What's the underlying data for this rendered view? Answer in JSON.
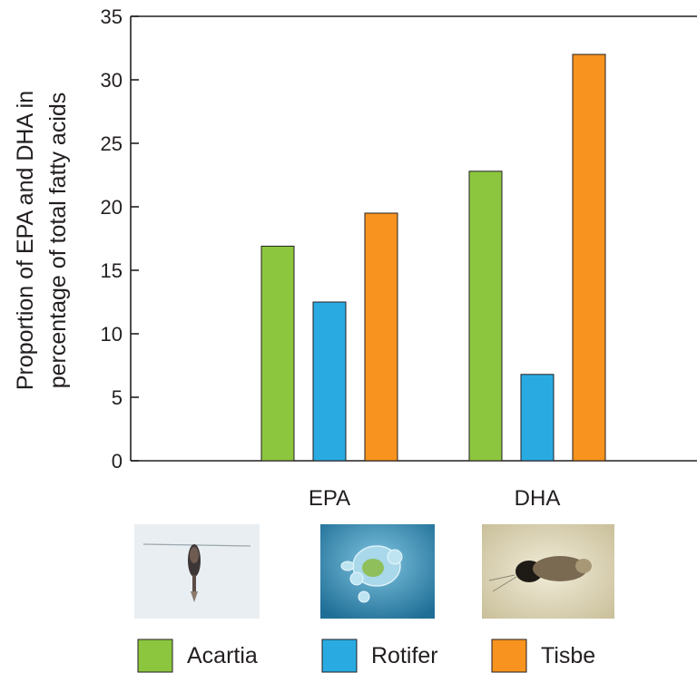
{
  "chart_data": {
    "type": "bar",
    "categories": [
      "EPA",
      "DHA"
    ],
    "series": [
      {
        "name": "Acartia",
        "values": [
          16.9,
          22.8
        ],
        "color": "#8cc63f"
      },
      {
        "name": "Rotifer",
        "values": [
          12.5,
          6.8
        ],
        "color": "#29abe2"
      },
      {
        "name": "Tisbe",
        "values": [
          19.5,
          32.0
        ],
        "color": "#f7931e"
      }
    ],
    "ylabel_lines": [
      "Proportion of EPA and DHA in",
      "percentage of total fatty acids"
    ],
    "ylim": [
      0,
      35
    ],
    "yticks": [
      0,
      5,
      10,
      15,
      20,
      25,
      30,
      35
    ],
    "grid": false,
    "legend_position": "bottom"
  },
  "photos": [
    {
      "icon": "acartia-copepod-photo",
      "bg": "#e9eef2"
    },
    {
      "icon": "rotifer-photo",
      "bg": "#4ba7cf"
    },
    {
      "icon": "tisbe-copepod-photo",
      "bg": "#e6e0c8"
    }
  ]
}
